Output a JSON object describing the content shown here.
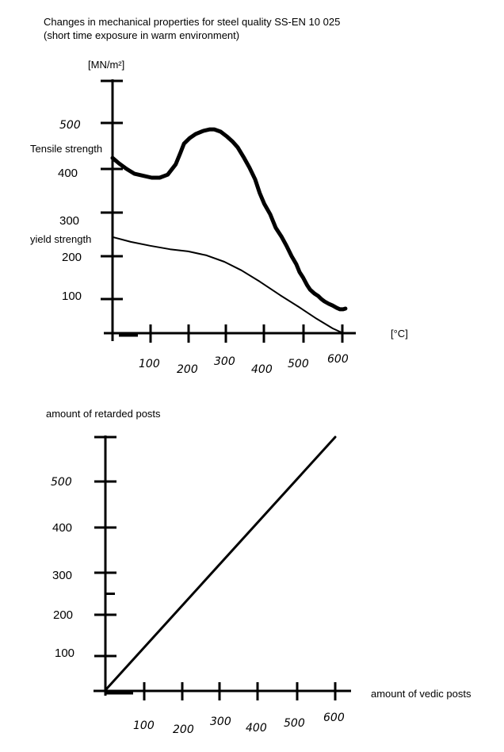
{
  "labels": {
    "title_line1": "Changes in mechanical properties for steel quality SS-EN 10 025",
    "title_line2": "(short time exposure in warm environment)"
  },
  "colors": {
    "ink": "#000000",
    "background": "#ffffff"
  },
  "chart_data": [
    {
      "type": "line",
      "title": "Changes in mechanical properties for steel quality SS-EN 10 025 (short time exposure in warm environment)",
      "xlabel": "[°C]",
      "ylabel": "[MN/m²]",
      "xlim": [
        0,
        640
      ],
      "ylim": [
        0,
        620
      ],
      "grid": false,
      "legend": "labels drawn at left of curves",
      "x_ticks": [
        100,
        200,
        300,
        400,
        500,
        600
      ],
      "x_tick_labels": [
        "100",
        "200",
        "300",
        "400",
        "500",
        "600"
      ],
      "y_ticks": [
        100,
        200,
        300,
        400,
        500,
        600
      ],
      "y_tick_labels": [
        "100",
        "200",
        "300",
        "400",
        "500",
        ""
      ],
      "series": [
        {
          "name": "Tensile strength",
          "style": "thick hand-drawn",
          "points": [
            [
              0,
              424
            ],
            [
              17,
              412
            ],
            [
              37,
              400
            ],
            [
              58,
              389
            ],
            [
              83,
              384
            ],
            [
              103,
              380
            ],
            [
              124,
              380
            ],
            [
              145,
              387
            ],
            [
              166,
              410
            ],
            [
              178,
              434
            ],
            [
              188,
              455
            ],
            [
              203,
              467
            ],
            [
              219,
              476
            ],
            [
              240,
              483
            ],
            [
              257,
              486
            ],
            [
              269,
              486
            ],
            [
              286,
              481
            ],
            [
              302,
              471
            ],
            [
              317,
              460
            ],
            [
              331,
              447
            ],
            [
              348,
              424
            ],
            [
              362,
              403
            ],
            [
              377,
              376
            ],
            [
              389,
              345
            ],
            [
              401,
              320
            ],
            [
              416,
              296
            ],
            [
              430,
              265
            ],
            [
              445,
              244
            ],
            [
              457,
              224
            ],
            [
              470,
              200
            ],
            [
              482,
              181
            ],
            [
              490,
              163
            ],
            [
              499,
              150
            ],
            [
              509,
              133
            ],
            [
              517,
              122
            ],
            [
              528,
              113
            ],
            [
              538,
              107
            ],
            [
              546,
              100
            ],
            [
              554,
              93
            ],
            [
              565,
              86
            ],
            [
              575,
              81
            ],
            [
              586,
              74
            ],
            [
              594,
              70
            ],
            [
              602,
              70
            ],
            [
              608,
              72
            ]
          ]
        },
        {
          "name": "yield strength",
          "style": "thin hand-drawn",
          "points": [
            [
              0,
              244
            ],
            [
              48,
              233
            ],
            [
              99,
              224
            ],
            [
              151,
              216
            ],
            [
              199,
              211
            ],
            [
              248,
              202
            ],
            [
              296,
              187
            ],
            [
              341,
              167
            ],
            [
              389,
              141
            ],
            [
              441,
              109
            ],
            [
              488,
              77
            ],
            [
              534,
              42
            ],
            [
              575,
              14
            ],
            [
              602,
              0
            ]
          ]
        }
      ]
    },
    {
      "type": "line",
      "title": "",
      "xlabel": "amount of vedic posts",
      "ylabel": "amount of retarded posts",
      "xlim": [
        0,
        640
      ],
      "ylim": [
        0,
        620
      ],
      "grid": false,
      "x_ticks": [
        100,
        200,
        300,
        400,
        500,
        600
      ],
      "x_tick_labels": [
        "100",
        "200",
        "300",
        "400",
        "500",
        "600"
      ],
      "y_ticks": [
        100,
        200,
        300,
        400,
        500,
        600
      ],
      "y_tick_labels": [
        "100",
        "200",
        "300",
        "400",
        "500",
        ""
      ],
      "y_minor_ticks": [
        250
      ],
      "series": [
        {
          "name": "identity line",
          "style": "straight",
          "points": [
            [
              0,
              0
            ],
            [
              600,
              600
            ]
          ]
        }
      ]
    }
  ]
}
